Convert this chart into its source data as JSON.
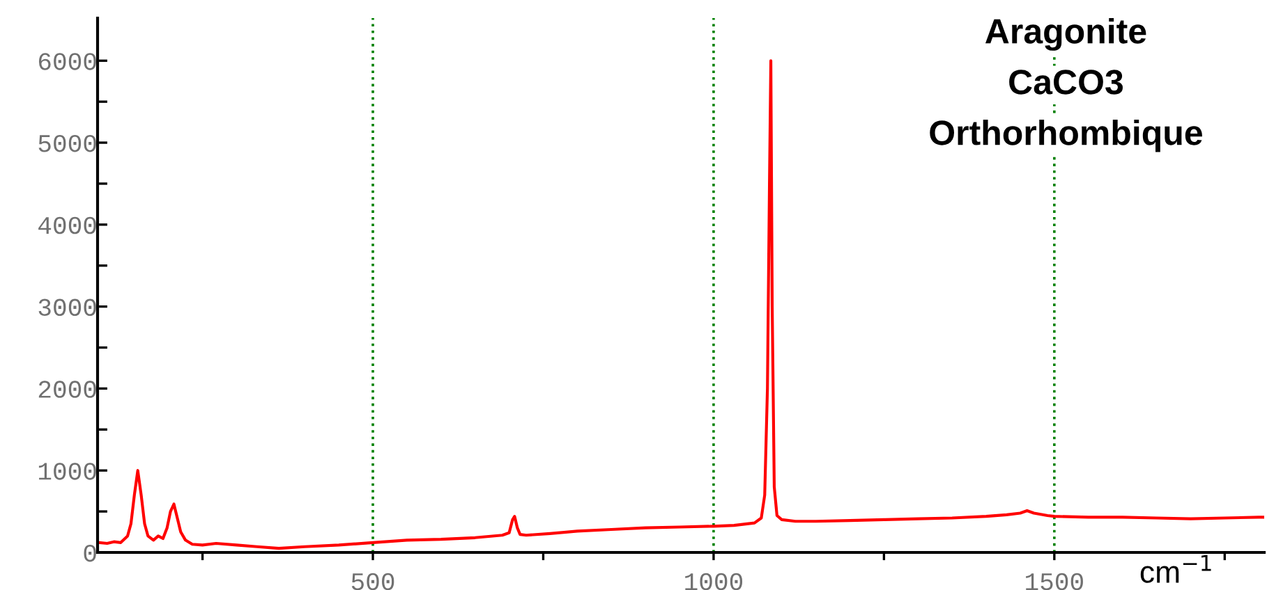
{
  "chart_data": {
    "type": "line",
    "title": "Aragonite",
    "subtitle": "CaCO3",
    "annotations": [
      "Orthorhombique"
    ],
    "xlabel": "cm$^{−1}$",
    "series": [
      {
        "color": "#ff0000",
        "x": [
          98,
          110,
          120,
          130,
          140,
          145,
          150,
          155,
          160,
          165,
          170,
          178,
          185,
          192,
          198,
          203,
          208,
          213,
          218,
          225,
          235,
          250,
          270,
          300,
          330,
          362,
          400,
          450,
          500,
          550,
          600,
          650,
          690,
          700,
          705,
          708,
          712,
          716,
          725,
          760,
          800,
          850,
          900,
          950,
          1000,
          1030,
          1060,
          1070,
          1075,
          1079,
          1082,
          1084,
          1086,
          1089,
          1093,
          1100,
          1120,
          1150,
          1200,
          1250,
          1300,
          1350,
          1400,
          1430,
          1450,
          1460,
          1470,
          1490,
          1500,
          1550,
          1600,
          1650,
          1700,
          1750,
          1800,
          1808
        ],
        "values": [
          120,
          110,
          130,
          120,
          200,
          350,
          700,
          1000,
          700,
          350,
          200,
          150,
          200,
          170,
          300,
          500,
          590,
          420,
          250,
          150,
          100,
          90,
          110,
          90,
          70,
          50,
          70,
          90,
          120,
          150,
          160,
          180,
          210,
          240,
          400,
          440,
          300,
          220,
          210,
          230,
          260,
          280,
          300,
          310,
          320,
          330,
          360,
          420,
          700,
          2000,
          4500,
          6000,
          3000,
          800,
          450,
          400,
          380,
          380,
          390,
          400,
          410,
          420,
          440,
          460,
          480,
          510,
          480,
          450,
          440,
          430,
          430,
          420,
          410,
          420,
          430,
          430
        ]
      }
    ],
    "xlim": [
      96,
      1808
    ],
    "ylim": [
      0,
      6520
    ],
    "xticks": [
      500,
      1000,
      1500,
      {
        "value": 250,
        "label": null
      },
      {
        "value": 750,
        "label": null
      },
      {
        "value": 1250,
        "label": null
      },
      {
        "value": 1750,
        "label": null
      }
    ],
    "yticks": [
      0,
      1000,
      2000,
      3000,
      4000,
      5000,
      6000,
      {
        "value": 500,
        "label": null
      },
      {
        "value": 1500,
        "label": null
      },
      {
        "value": 2500,
        "label": null
      },
      {
        "value": 3500,
        "label": null
      },
      {
        "value": 4500,
        "label": null
      },
      {
        "value": 5500,
        "label": null
      }
    ],
    "grid": "x",
    "legend": false,
    "marker": "none",
    "line_style": "solid"
  }
}
